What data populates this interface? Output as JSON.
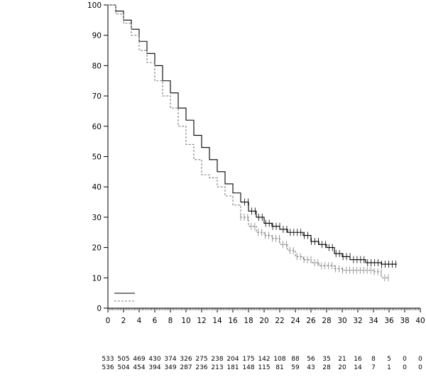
{
  "chart_data": {
    "type": "line",
    "subtype": "kaplan-meier",
    "title": "",
    "xlabel": "",
    "ylabel": "",
    "xlim": [
      0,
      40
    ],
    "ylim": [
      0,
      100
    ],
    "x_ticks": [
      0,
      2,
      4,
      6,
      8,
      10,
      12,
      14,
      16,
      18,
      20,
      22,
      24,
      26,
      28,
      30,
      32,
      34,
      36,
      38,
      40
    ],
    "y_ticks": [
      0,
      10,
      20,
      30,
      40,
      50,
      60,
      70,
      80,
      90,
      100
    ],
    "grid": false,
    "legend": {
      "placement": "bottom-left",
      "entries": [
        {
          "style": "solid",
          "color": "#000000",
          "label": ""
        },
        {
          "style": "dashed",
          "color": "#808080",
          "label": ""
        }
      ]
    },
    "series": [
      {
        "style": "solid",
        "color": "#000000",
        "x": [
          0,
          1,
          2,
          3,
          4,
          5,
          6,
          7,
          8,
          9,
          10,
          11,
          12,
          13,
          14,
          15,
          16,
          17,
          18,
          19,
          20,
          21,
          22,
          23,
          24,
          25,
          26,
          27,
          28,
          29,
          30,
          31,
          32,
          33,
          34,
          35,
          36,
          37
        ],
        "y": [
          100,
          98,
          95,
          92,
          88,
          84,
          80,
          75,
          71,
          66,
          62,
          57,
          53,
          49,
          45,
          41,
          38,
          35,
          32,
          30,
          28,
          27,
          26,
          25,
          25,
          24,
          22,
          21,
          20,
          18,
          17,
          16,
          16,
          15,
          15,
          14.5,
          14.5,
          14.5
        ]
      },
      {
        "style": "dashed",
        "color": "#808080",
        "x": [
          0,
          1,
          2,
          3,
          4,
          5,
          6,
          7,
          8,
          9,
          10,
          11,
          12,
          13,
          14,
          15,
          16,
          17,
          18,
          19,
          20,
          21,
          22,
          23,
          24,
          25,
          26,
          27,
          28,
          29,
          30,
          31,
          32,
          33,
          34,
          35,
          36
        ],
        "y": [
          100,
          97,
          94,
          90,
          85,
          81,
          75,
          70,
          66,
          60,
          54,
          49,
          44,
          43,
          40,
          37,
          34,
          30,
          27,
          25,
          24,
          23,
          21,
          19,
          17,
          16,
          15,
          14,
          14,
          13,
          12.5,
          12.5,
          12.5,
          12.5,
          12,
          10,
          10
        ]
      }
    ],
    "risk_table": {
      "times": [
        0,
        2,
        4,
        6,
        8,
        10,
        12,
        14,
        16,
        18,
        20,
        22,
        24,
        26,
        28,
        30,
        32,
        34,
        36,
        38,
        40
      ],
      "rows": [
        [
          "533",
          "505",
          "469",
          "430",
          "374",
          "326",
          "275",
          "238",
          "204",
          "175",
          "142",
          "108",
          "88",
          "56",
          "35",
          "21",
          "16",
          "8",
          "5",
          "0",
          "0"
        ],
        [
          "536",
          "504",
          "454",
          "394",
          "349",
          "287",
          "236",
          "213",
          "181",
          "148",
          "115",
          "81",
          "59",
          "43",
          "28",
          "20",
          "14",
          "7",
          "1",
          "0",
          "0"
        ]
      ]
    }
  }
}
